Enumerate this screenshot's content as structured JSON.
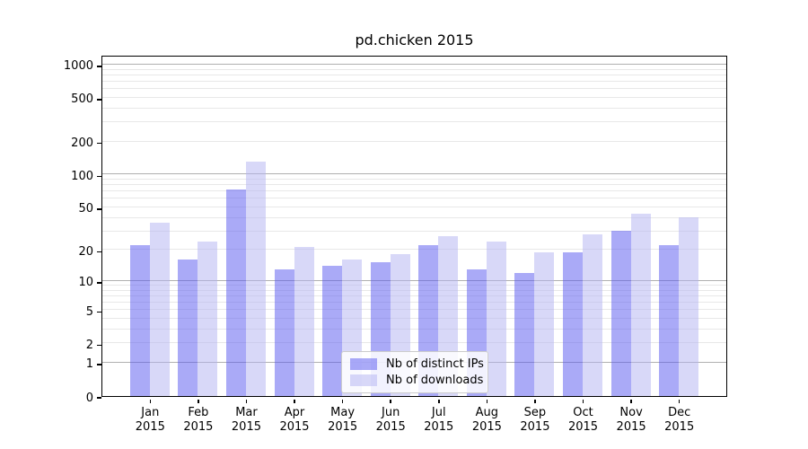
{
  "chart_data": {
    "type": "bar",
    "title": "pd.chicken 2015",
    "x_year": "2015",
    "categories": [
      "Jan",
      "Feb",
      "Mar",
      "Apr",
      "May",
      "Jun",
      "Jul",
      "Aug",
      "Sep",
      "Oct",
      "Nov",
      "Dec"
    ],
    "series": [
      {
        "name": "Nb of distinct IPs",
        "color": "rgba(85,85,239,0.5)",
        "values": [
          22,
          16,
          72,
          13,
          14,
          15,
          22,
          13,
          12,
          19,
          30,
          22
        ]
      },
      {
        "name": "Nb of downloads",
        "color": "rgba(177,177,241,0.5)",
        "values": [
          36,
          24,
          130,
          21,
          16,
          18,
          27,
          24,
          19,
          28,
          43,
          40
        ]
      }
    ],
    "y_axis": {
      "scale": "log10(1+y)",
      "labeled_ticks": [
        0,
        1,
        2,
        5,
        10,
        20,
        50,
        100,
        200,
        500,
        1000
      ],
      "major_gridlines": [
        1,
        10,
        100,
        1000
      ],
      "minor_gridlines": [
        2,
        3,
        4,
        5,
        6,
        7,
        8,
        9,
        20,
        30,
        40,
        50,
        60,
        70,
        80,
        90,
        200,
        300,
        400,
        500,
        600,
        700,
        800,
        900
      ],
      "ylim": [
        0,
        1250
      ]
    },
    "xlabel": "",
    "ylabel": "",
    "grid": true,
    "legend_position": "lower center"
  },
  "colors": {
    "major_grid": "#b0b0b0",
    "minor_grid": "#e8e8e8",
    "spine": "#000000",
    "background": "#ffffff",
    "legend_border": "#cccccc"
  }
}
